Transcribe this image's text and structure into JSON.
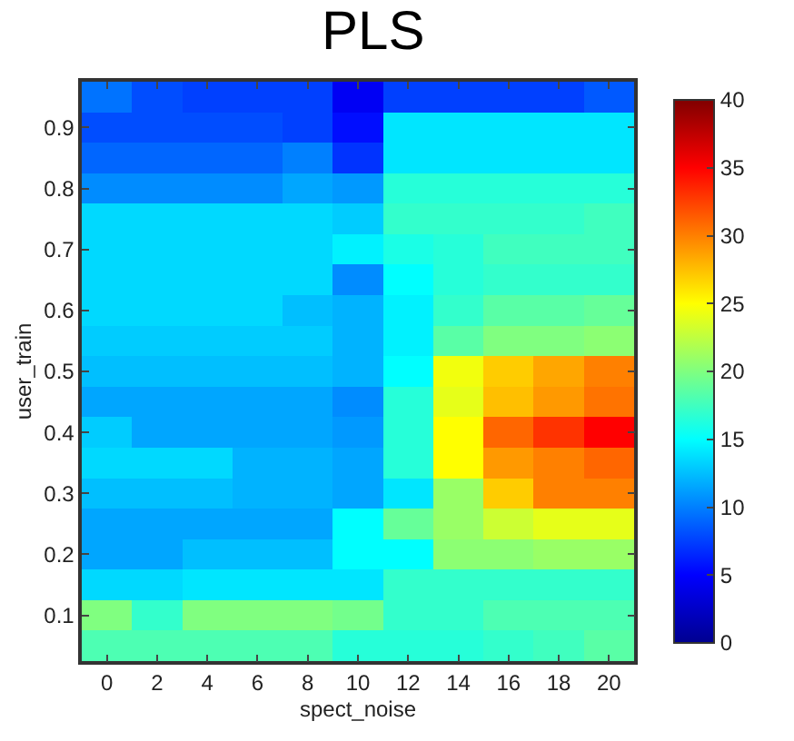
{
  "chart_data": {
    "type": "heatmap",
    "title": "PLS",
    "xlabel": "spect_noise",
    "ylabel": "user_train",
    "categories": [
      "0",
      "2",
      "4",
      "6",
      "8",
      "10",
      "12",
      "14",
      "16",
      "18",
      "20"
    ],
    "y_categories": [
      null,
      "0.9",
      null,
      "0.8",
      null,
      "0.7",
      null,
      "0.6",
      null,
      "0.5",
      null,
      "0.4",
      null,
      "0.3",
      null,
      "0.2",
      null,
      "0.1",
      null
    ],
    "cells": [
      [
        9.5,
        8,
        7.5,
        7.5,
        7.5,
        4.5,
        7.5,
        7.5,
        7.5,
        7.5,
        8.5
      ],
      [
        8,
        8,
        8,
        8,
        7.5,
        5.5,
        14,
        14,
        14,
        14,
        14
      ],
      [
        9,
        9,
        9,
        9,
        10,
        7,
        14,
        14,
        14,
        14,
        14
      ],
      [
        10.5,
        10.5,
        10.5,
        10.5,
        11.5,
        11,
        16.5,
        16.5,
        16.5,
        16.5,
        16.5
      ],
      [
        13.5,
        13.5,
        13.5,
        13.5,
        13.5,
        13,
        17,
        17,
        17,
        17,
        17.5
      ],
      [
        13.5,
        13.5,
        13.5,
        13.5,
        13.5,
        14.5,
        16,
        16.5,
        17.5,
        17.5,
        17.5
      ],
      [
        13.5,
        13.5,
        13.5,
        13.5,
        13.5,
        10.5,
        15,
        16.5,
        17,
        17,
        17
      ],
      [
        13.5,
        13.5,
        13.5,
        13.5,
        12.5,
        12,
        14.5,
        17,
        18.5,
        18.5,
        19
      ],
      [
        13,
        13,
        13,
        13,
        13,
        12,
        14.5,
        18.5,
        20,
        20,
        20.5
      ],
      [
        12.5,
        12.5,
        12.5,
        12.5,
        12.5,
        12,
        15,
        24.5,
        27,
        28.5,
        30
      ],
      [
        11.5,
        11.5,
        11.5,
        11.5,
        11.5,
        10.5,
        16.5,
        24,
        27.5,
        29,
        30.5
      ],
      [
        13,
        11.5,
        11.5,
        11.5,
        11.5,
        11,
        16.5,
        25,
        31,
        33,
        35
      ],
      [
        13.5,
        13.5,
        13.5,
        12,
        12,
        11.5,
        16.5,
        25,
        29,
        30,
        31
      ],
      [
        12.5,
        12.5,
        12.5,
        12,
        12,
        11.5,
        14,
        21,
        27,
        30,
        30
      ],
      [
        11.5,
        11.5,
        11.5,
        11.5,
        11.5,
        15,
        19,
        21,
        23,
        24,
        24
      ],
      [
        11.5,
        11.5,
        12.5,
        12.5,
        12.5,
        15,
        15,
        20.5,
        20.5,
        21,
        21
      ],
      [
        13.5,
        13.5,
        14,
        14,
        14,
        14,
        17,
        17,
        17,
        17,
        17
      ],
      [
        20,
        17,
        20,
        20,
        20,
        19.5,
        17,
        17,
        18,
        18,
        18
      ],
      [
        18,
        18,
        18,
        18,
        18,
        16.5,
        16.5,
        16.5,
        17,
        17.5,
        18.5
      ]
    ],
    "clim": [
      0,
      40
    ],
    "cticks": [
      0,
      5,
      10,
      15,
      20,
      25,
      30,
      35,
      40
    ]
  }
}
